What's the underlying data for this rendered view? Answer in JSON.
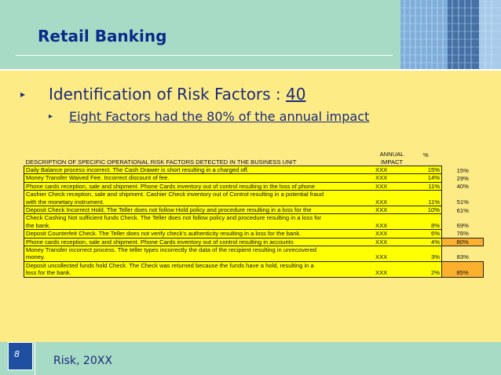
{
  "title": "Retail Banking",
  "bullet1": {
    "text": "Identification of Risk Factors : ",
    "number": "40"
  },
  "bullet2": {
    "text": "Eight Factors had the 80% of the annual impact"
  },
  "table": {
    "header": {
      "description": "DESCRIPTION OF SPECIFIC OPERATIONAL RISK FACTORS DETECTED IN THE BUSINESS UNIT",
      "annual_impact": "ANNUAL IMPACT",
      "percent": "%"
    },
    "rows": [
      {
        "description": "Daily Balance process incorrect. The Cash Drawer is short resulting in a charged off.",
        "impact": "XXX",
        "pct": "15%",
        "cum": "15%"
      },
      {
        "description": "Money Transfer Waived Fee. Incorrect discount of fee.",
        "impact": "XXX",
        "pct": "14%",
        "cum": "29%"
      },
      {
        "description": "Phone cards reception, sale and shipment. Phone Cards inventory out of control resulting in the loss of phone",
        "impact": "XXX",
        "pct": "11%",
        "cum": "40%"
      },
      {
        "description_line1": "Cashier Check reception, sale and shipment. Cashier Check inventory out of Control resulting in a potential fraud",
        "description_line2": "with the monetary instrument.",
        "impact": "XXX",
        "pct": "11%",
        "cum": "51%"
      },
      {
        "description": "Deposit Check Incorrect Hold. The Teller does not follow Hold policy and procedure resulting in a loss for the",
        "impact": "XXX",
        "pct": "10%",
        "cum": "61%"
      },
      {
        "description_line1": "Check Cashing  Not sufficient funds Check. The Teller does not follow policy and procedure resulting in a loss for",
        "description_line2": "the bank.",
        "impact": "XXX",
        "pct": "8%",
        "cum": "69%"
      },
      {
        "description": "Deposit Counterfeit Check. The Teller does not verify check's authenticity resulting in a loss for the bank.",
        "impact": "XXX",
        "pct": "6%",
        "cum": "76%"
      },
      {
        "description": "Phone cards reception, sale and shipment. Phone Cards inventory out of control resulting in accounts",
        "impact": "XXX",
        "pct": "4%",
        "cum": "80%"
      },
      {
        "description_line1": "Money Transfer incorrect process. The teller types incorrectly the data of the recipient resulting in unrecovered",
        "description_line2": "money.",
        "impact": "XXX",
        "pct": "3%",
        "cum": "83%"
      },
      {
        "description_line1": "Deposit uncollected funds hold Check. The Check was returned because the funds have a hold, resulting in a",
        "description_line2": "loss for the bank.",
        "impact": "XXX",
        "pct": "2%",
        "cum": "85%"
      }
    ]
  },
  "footer": {
    "page_number": "8",
    "text": "Risk, 20XX"
  },
  "colors": {
    "header_bg": "#a7dbc5",
    "body_bg": "#fdeb86",
    "highlight": "#ffff00",
    "orange": "#fbb12e",
    "title": "#0a2a8a"
  }
}
